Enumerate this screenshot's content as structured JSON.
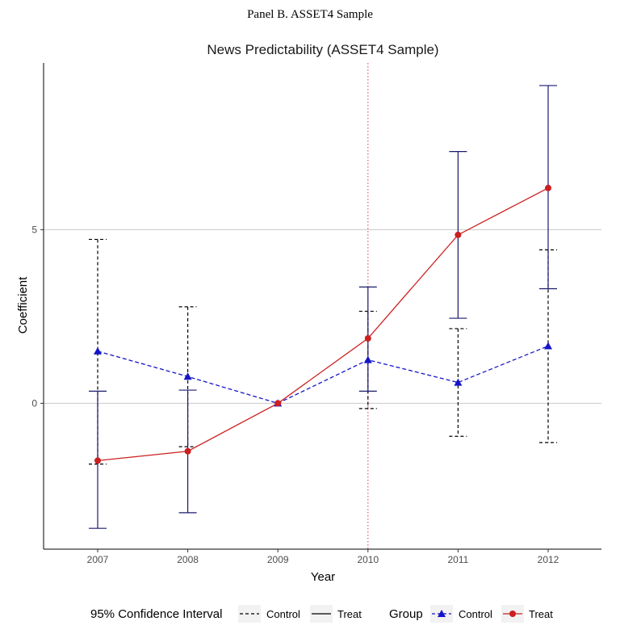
{
  "panel_label": "Panel B. ASSET4 Sample",
  "chart_data": {
    "type": "line",
    "title": "News Predictability (ASSET4 Sample)",
    "xlabel": "Year",
    "ylabel": "Coefficient",
    "categories": [
      "2007",
      "2008",
      "2009",
      "2010",
      "2011",
      "2012"
    ],
    "ylim": [
      -4.2,
      9.8
    ],
    "yticks": [
      0,
      5
    ],
    "grid": "horizontal at y ticks",
    "event_line": {
      "x": "2010",
      "color": "#e05a6b",
      "style": "dotted"
    },
    "series": [
      {
        "name": "Control",
        "color": "#1414c8",
        "marker": "triangle",
        "line_style": "dashed",
        "values": [
          1.5,
          0.77,
          0.0,
          1.25,
          0.6,
          1.65
        ],
        "ci_low": [
          -1.75,
          -1.25,
          0.0,
          -0.15,
          -0.95,
          -1.13
        ],
        "ci_high": [
          4.72,
          2.78,
          0.0,
          2.65,
          2.15,
          4.42
        ],
        "ci_style": "dashed",
        "ci_color": "#000000"
      },
      {
        "name": "Treat",
        "color": "#cc1f1f",
        "marker": "circle",
        "line_style": "solid",
        "values": [
          -1.65,
          -1.38,
          0.0,
          1.87,
          4.85,
          6.2
        ],
        "ci_low": [
          -3.6,
          -3.15,
          0.0,
          0.35,
          2.45,
          3.3
        ],
        "ci_high": [
          0.35,
          0.38,
          0.0,
          3.35,
          7.25,
          9.15
        ],
        "ci_style": "solid",
        "ci_color": "#1a1a6e"
      }
    ]
  },
  "legend": {
    "ci_title": "95% Confidence Interval",
    "ci_items": [
      "Control",
      "Treat"
    ],
    "group_title": "Group",
    "group_items": [
      "Control",
      "Treat"
    ]
  }
}
